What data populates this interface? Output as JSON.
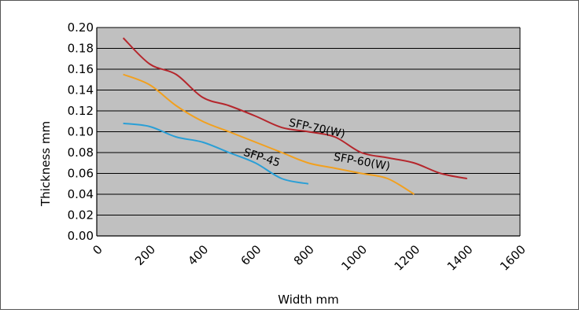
{
  "chart_data": {
    "type": "line",
    "title": "",
    "xlabel": "Width mm",
    "ylabel": "Thickness mm",
    "xlim": [
      0,
      1600
    ],
    "ylim": [
      0,
      0.2
    ],
    "x_ticks": [
      "0",
      "200",
      "400",
      "600",
      "800",
      "1000",
      "1200",
      "1400",
      "1600"
    ],
    "y_ticks": [
      "0.00",
      "0.02",
      "0.04",
      "0.06",
      "0.08",
      "0.10",
      "0.12",
      "0.14",
      "0.16",
      "0.18",
      "0.20"
    ],
    "grid": "horizontal",
    "plot_background": "#c0c0c0",
    "series": [
      {
        "name": "SFP-70(W)",
        "color": "#b5262c",
        "points": [
          [
            100,
            0.19
          ],
          [
            200,
            0.165
          ],
          [
            300,
            0.155
          ],
          [
            400,
            0.133
          ],
          [
            500,
            0.125
          ],
          [
            600,
            0.115
          ],
          [
            700,
            0.104
          ],
          [
            800,
            0.1
          ],
          [
            900,
            0.095
          ],
          [
            1000,
            0.08
          ],
          [
            1100,
            0.075
          ],
          [
            1200,
            0.07
          ],
          [
            1300,
            0.06
          ],
          [
            1400,
            0.055
          ]
        ]
      },
      {
        "name": "SFP-60(W)",
        "color": "#f2a01e",
        "points": [
          [
            100,
            0.155
          ],
          [
            200,
            0.145
          ],
          [
            300,
            0.125
          ],
          [
            400,
            0.11
          ],
          [
            500,
            0.1
          ],
          [
            600,
            0.09
          ],
          [
            700,
            0.08
          ],
          [
            800,
            0.07
          ],
          [
            900,
            0.065
          ],
          [
            1000,
            0.06
          ],
          [
            1100,
            0.055
          ],
          [
            1200,
            0.04
          ]
        ]
      },
      {
        "name": "SFP-45",
        "color": "#2a9fd6",
        "points": [
          [
            100,
            0.108
          ],
          [
            200,
            0.105
          ],
          [
            300,
            0.095
          ],
          [
            400,
            0.09
          ],
          [
            500,
            0.08
          ],
          [
            600,
            0.07
          ],
          [
            700,
            0.055
          ],
          [
            800,
            0.05
          ]
        ]
      }
    ],
    "annotations": [
      {
        "text": "SFP-70(W)",
        "x": 830,
        "y": 0.1,
        "series": "SFP-70(W)",
        "rotation": 12
      },
      {
        "text": "SFP-60(W)",
        "x": 1000,
        "y": 0.068,
        "series": "SFP-60(W)",
        "rotation": 10
      },
      {
        "text": "SFP-45",
        "x": 620,
        "y": 0.072,
        "series": "SFP-45",
        "rotation": 18
      }
    ]
  }
}
